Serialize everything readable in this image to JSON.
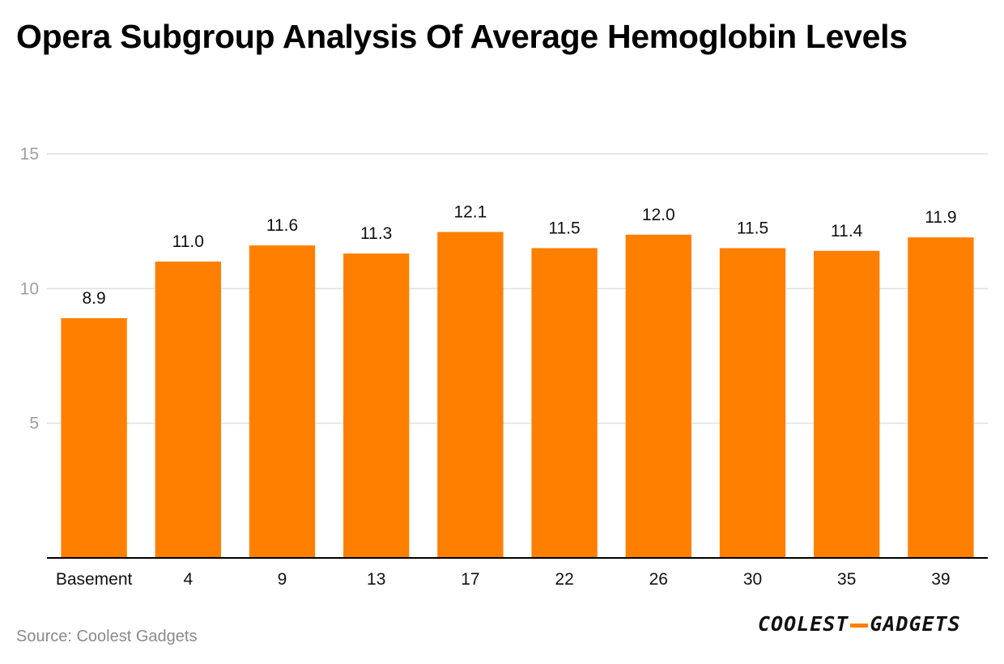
{
  "title": "Opera Subgroup Analysis Of Average Hemoglobin Levels",
  "source": "Source: Coolest Gadgets",
  "logo": {
    "left": "COOLEST",
    "right": "GADGETS"
  },
  "colors": {
    "bar": "#ff7f00",
    "grid": "#e0e0e0",
    "axis": "#000000",
    "accent": "#ff7f00"
  },
  "chart_data": {
    "type": "bar",
    "title": "Opera Subgroup Analysis Of Average Hemoglobin Levels",
    "xlabel": "",
    "ylabel": "",
    "categories": [
      "Basement",
      "4",
      "9",
      "13",
      "17",
      "22",
      "26",
      "30",
      "35",
      "39"
    ],
    "values": [
      8.9,
      11.0,
      11.6,
      11.3,
      12.1,
      11.5,
      12.0,
      11.5,
      11.4,
      11.9
    ],
    "data_labels": [
      "8.9",
      "11.0",
      "11.6",
      "11.3",
      "12.1",
      "11.5",
      "12.0",
      "11.5",
      "11.4",
      "11.9"
    ],
    "ylim": [
      0,
      15
    ],
    "yticks": [
      5,
      10,
      15
    ],
    "grid": true,
    "legend": "none"
  }
}
